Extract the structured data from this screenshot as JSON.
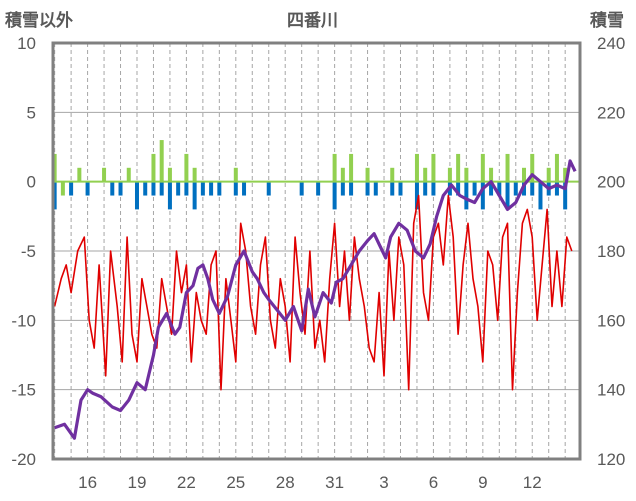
{
  "chart_data": {
    "type": "line",
    "title": "四番川",
    "ylabel_left": "積雪以外",
    "ylabel_right": "積雪",
    "ylim_left": [
      -20,
      10
    ],
    "ylim_right": [
      120,
      240
    ],
    "yticks_left": [
      "10",
      "5",
      "0",
      "-5",
      "-10",
      "-15",
      "-20"
    ],
    "yticks_right": [
      "240",
      "220",
      "200",
      "180",
      "160",
      "140",
      "120"
    ],
    "xticks": [
      "16",
      "19",
      "22",
      "25",
      "28",
      "31",
      "3",
      "6",
      "9",
      "12"
    ],
    "grid": true,
    "legend": "none",
    "colors": {
      "snow_depth": "#7030a0",
      "temperature": "#e00000",
      "green_bars": "#92d050",
      "blue_bars": "#0070c0",
      "frame": "#808080",
      "grid": "#a6a6a6"
    },
    "series": [
      {
        "axis": "right",
        "color": "#7030a0",
        "x": [
          14.0,
          14.6,
          15.2,
          15.6,
          16.0,
          16.3,
          16.8,
          17.5,
          18.0,
          18.5,
          19.0,
          19.5,
          20.0,
          20.3,
          20.8,
          21.3,
          21.6,
          22.0,
          22.4,
          22.7,
          23.0,
          23.3,
          23.6,
          24.0,
          24.5,
          25.0,
          25.5,
          26.0,
          26.3,
          26.7,
          27.0,
          27.5,
          28.0,
          28.5,
          29.0,
          29.4,
          29.8,
          30.3,
          30.8,
          31.1,
          31.5,
          32.0,
          32.5,
          33.0,
          33.4,
          33.8,
          34.1,
          34.4,
          34.9,
          35.4,
          35.9,
          36.4,
          36.8,
          37.2,
          37.6,
          38.1,
          38.6,
          39.0,
          39.5,
          40.0,
          40.5,
          41.0,
          41.5,
          42.0,
          42.5,
          43.0,
          43.5,
          44.0,
          44.5,
          45.0,
          45.3,
          45.6
        ],
        "y": [
          129,
          130,
          126,
          137,
          140,
          139,
          138,
          135,
          134,
          137,
          142,
          140,
          150,
          158,
          162,
          156,
          158,
          168,
          170,
          175,
          176,
          172,
          166,
          162,
          167,
          176,
          180,
          174,
          172,
          168,
          166,
          163,
          160,
          164,
          157,
          169,
          161,
          168,
          165,
          171,
          172,
          176,
          180,
          183,
          185,
          181,
          178,
          184,
          188,
          186,
          180,
          178,
          182,
          190,
          196,
          199,
          196,
          195,
          194,
          198,
          200,
          196,
          192,
          194,
          199,
          202,
          200,
          198,
          199,
          198,
          206,
          203
        ]
      },
      {
        "axis": "left",
        "color": "#e00000",
        "x": [
          14.0,
          14.4,
          14.7,
          15.0,
          15.4,
          15.8,
          16.1,
          16.4,
          16.7,
          17.1,
          17.4,
          17.8,
          18.1,
          18.4,
          18.7,
          19.0,
          19.3,
          19.6,
          19.9,
          20.2,
          20.5,
          20.8,
          21.1,
          21.4,
          21.7,
          22.0,
          22.3,
          22.6,
          22.9,
          23.2,
          23.5,
          23.8,
          24.1,
          24.4,
          24.7,
          25.0,
          25.3,
          25.6,
          25.9,
          26.2,
          26.5,
          26.8,
          27.1,
          27.4,
          27.7,
          28.0,
          28.3,
          28.6,
          28.9,
          29.2,
          29.5,
          29.8,
          30.1,
          30.4,
          30.7,
          31.0,
          31.3,
          31.6,
          31.9,
          32.2,
          32.5,
          32.8,
          33.1,
          33.4,
          33.7,
          34.0,
          34.3,
          34.6,
          34.9,
          35.2,
          35.5,
          35.8,
          36.1,
          36.4,
          36.7,
          37.0,
          37.3,
          37.6,
          37.9,
          38.2,
          38.5,
          38.8,
          39.1,
          39.4,
          39.7,
          40.0,
          40.3,
          40.6,
          40.9,
          41.2,
          41.5,
          41.8,
          42.1,
          42.4,
          42.7,
          43.0,
          43.3,
          43.6,
          43.9,
          44.2,
          44.5,
          44.8,
          45.1,
          45.4
        ],
        "y": [
          -9,
          -7,
          -6,
          -8,
          -5,
          -4,
          -10,
          -12,
          -6,
          -14,
          -5,
          -9,
          -13,
          -4,
          -11,
          -13,
          -7,
          -9,
          -11,
          -12,
          -7,
          -9,
          -11,
          -5,
          -8,
          -6,
          -13,
          -8,
          -10,
          -11,
          -6,
          -5,
          -15,
          -7,
          -10,
          -13,
          -3,
          -5,
          -9,
          -11,
          -6,
          -4,
          -10,
          -12,
          -7,
          -9,
          -13,
          -4,
          -8,
          -11,
          -5,
          -12,
          -10,
          -13,
          -7,
          -3,
          -9,
          -5,
          -10,
          -4,
          -7,
          -9,
          -12,
          -13,
          -8,
          -14,
          -5,
          -10,
          -4,
          -6,
          -15,
          -3,
          -1,
          -8,
          -10,
          -4,
          -3,
          -6,
          -1,
          -4,
          -11,
          -6,
          -3,
          -7,
          -9,
          -13,
          -5,
          -6,
          -10,
          -4,
          -3,
          -15,
          -8,
          -3,
          -2,
          -4,
          -10,
          -6,
          -2,
          -9,
          -5,
          -9,
          -4,
          -5
        ]
      },
      {
        "axis": "left",
        "color": "#92d050",
        "x": [
          14.0,
          14.5,
          15.0,
          15.5,
          16.0,
          16.5,
          17.0,
          17.5,
          18.0,
          18.5,
          19.0,
          19.5,
          20.0,
          20.5,
          21.0,
          21.5,
          22.0,
          22.5,
          23.0,
          23.5,
          24.0,
          24.5,
          25.0,
          25.5,
          26.0,
          26.5,
          27.0,
          27.5,
          28.0,
          28.5,
          29.0,
          29.5,
          30.0,
          30.5,
          31.0,
          31.5,
          32.0,
          32.5,
          33.0,
          33.5,
          34.0,
          34.5,
          35.0,
          35.5,
          36.0,
          36.5,
          37.0,
          37.5,
          38.0,
          38.5,
          39.0,
          39.5,
          40.0,
          40.5,
          41.0,
          41.5,
          42.0,
          42.5,
          43.0,
          43.5,
          44.0,
          44.5,
          45.0,
          45.5
        ],
        "y": [
          2,
          -1,
          0,
          1,
          0,
          0,
          1,
          0,
          0,
          1,
          0,
          0,
          2,
          3,
          1,
          0,
          2,
          1,
          0,
          0,
          0,
          0,
          1,
          0,
          0,
          0,
          0,
          0,
          0,
          0,
          0,
          0,
          0,
          0,
          2,
          1,
          2,
          0,
          1,
          0,
          0,
          1,
          0,
          0,
          2,
          1,
          2,
          0,
          1,
          2,
          1,
          0,
          2,
          1,
          0,
          2,
          0,
          1,
          2,
          0,
          1,
          2,
          1,
          0
        ]
      },
      {
        "axis": "left",
        "color": "#0070c0",
        "x": [
          14.0,
          14.5,
          15.0,
          15.5,
          16.0,
          16.5,
          17.0,
          17.5,
          18.0,
          18.5,
          19.0,
          19.5,
          20.0,
          20.5,
          21.0,
          21.5,
          22.0,
          22.5,
          23.0,
          23.5,
          24.0,
          24.5,
          25.0,
          25.5,
          26.0,
          26.5,
          27.0,
          27.5,
          28.0,
          28.5,
          29.0,
          29.5,
          30.0,
          30.5,
          31.0,
          31.5,
          32.0,
          32.5,
          33.0,
          33.5,
          34.0,
          34.5,
          35.0,
          35.5,
          36.0,
          36.5,
          37.0,
          37.5,
          38.0,
          38.5,
          39.0,
          39.5,
          40.0,
          40.5,
          41.0,
          41.5,
          42.0,
          42.5,
          43.0,
          43.5,
          44.0,
          44.5,
          45.0,
          45.5
        ],
        "y": [
          -2,
          0,
          -1,
          0,
          -1,
          0,
          0,
          -1,
          -1,
          0,
          -2,
          -1,
          -1,
          -1,
          -2,
          -1,
          -1,
          -2,
          -1,
          -1,
          -1,
          0,
          -1,
          -1,
          0,
          0,
          -1,
          0,
          0,
          0,
          -1,
          0,
          -1,
          0,
          -2,
          -1,
          -1,
          0,
          -1,
          -1,
          0,
          -1,
          -1,
          0,
          -2,
          -1,
          -1,
          0,
          -1,
          -1,
          -2,
          -1,
          -2,
          -1,
          -1,
          -2,
          -1,
          -1,
          -1,
          -2,
          -1,
          -1,
          -2,
          0
        ]
      }
    ]
  }
}
